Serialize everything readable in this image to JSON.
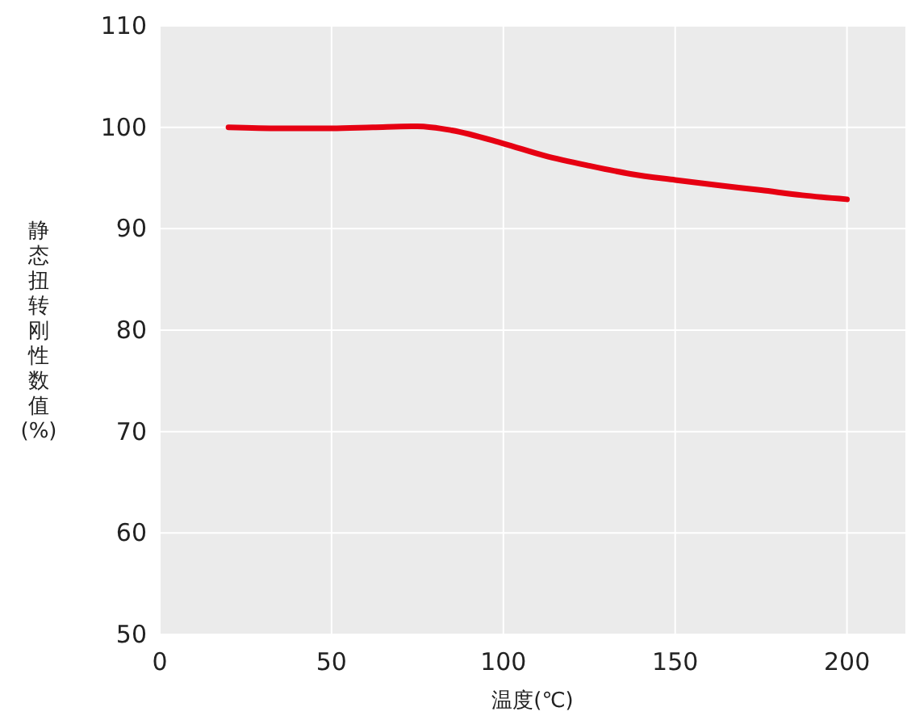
{
  "chart_data": {
    "type": "line",
    "xlabel": "温度(℃)",
    "ylabel": "静态扭转刚性数值(%)",
    "x": [
      20,
      35,
      50,
      62,
      75,
      85,
      100,
      112,
      125,
      137,
      150,
      162,
      175,
      187,
      200
    ],
    "series": [
      {
        "color": "#e60012",
        "values": [
          100,
          99.9,
          99.9,
          100,
          100.1,
          99.7,
          98.4,
          97.2,
          96.2,
          95.4,
          94.8,
          94.3,
          93.8,
          93.3,
          92.9
        ]
      }
    ],
    "xlim": [
      0,
      217
    ],
    "xticks": [
      0,
      50,
      100,
      150,
      200
    ],
    "ylim": [
      50,
      110
    ],
    "yticks": [
      50,
      60,
      70,
      80,
      90,
      100,
      110
    ],
    "grid": true,
    "marker": "none",
    "line_style": "solid"
  }
}
